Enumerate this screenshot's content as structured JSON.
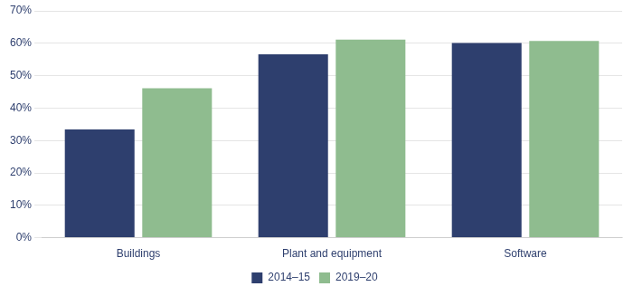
{
  "chart_data": {
    "type": "bar",
    "categories": [
      "Buildings",
      "Plant and equipment",
      "Software"
    ],
    "series": [
      {
        "name": "2014–15",
        "color": "#2e3f6e",
        "values": [
          0.334,
          0.566,
          0.601
        ]
      },
      {
        "name": "2019–20",
        "color": "#8fbc8f",
        "values": [
          0.461,
          0.611,
          0.607
        ]
      }
    ],
    "ylim": [
      0,
      0.7
    ],
    "yticks": [
      {
        "value": 0.0,
        "label": "0%"
      },
      {
        "value": 0.1,
        "label": "10%"
      },
      {
        "value": 0.2,
        "label": "20%"
      },
      {
        "value": 0.3,
        "label": "30%"
      },
      {
        "value": 0.4,
        "label": "40%"
      },
      {
        "value": 0.5,
        "label": "50%"
      },
      {
        "value": 0.6,
        "label": "60%"
      },
      {
        "value": 0.7,
        "label": "70%"
      }
    ],
    "grid": true,
    "legend": "bottom"
  }
}
